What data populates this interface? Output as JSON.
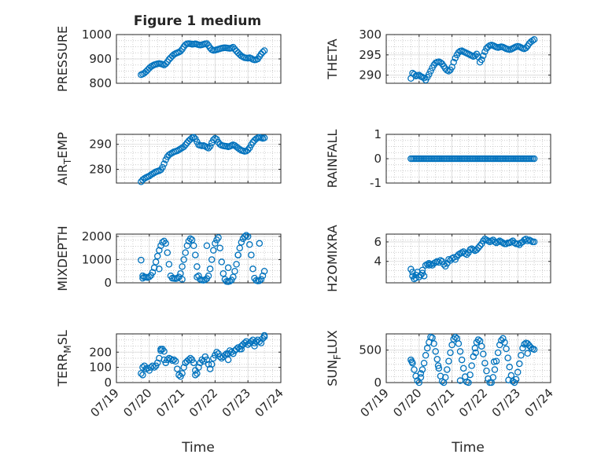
{
  "figure": {
    "title": "Figure 1 medium",
    "xlabel": "Time",
    "marker_color": "#0072BD",
    "x_ticks": [
      "07/19",
      "07/20",
      "07/21",
      "07/22",
      "07/23",
      "07/24"
    ],
    "xlim": [
      0,
      5
    ],
    "grid": "minor dotted"
  },
  "chart_data": [
    {
      "type": "scatter",
      "ylabel": "PRESSURE",
      "ylim": [
        800,
        1000
      ],
      "yticks": [
        "800",
        "900",
        "1000"
      ],
      "x": [
        0.75,
        0.8,
        0.85,
        0.9,
        0.95,
        1.0,
        1.05,
        1.1,
        1.15,
        1.2,
        1.25,
        1.3,
        1.35,
        1.4,
        1.45,
        1.5,
        1.55,
        1.6,
        1.65,
        1.7,
        1.75,
        1.8,
        1.85,
        1.9,
        1.95,
        2.0,
        2.05,
        2.1,
        2.15,
        2.2,
        2.25,
        2.3,
        2.35,
        2.4,
        2.45,
        2.5,
        2.55,
        2.6,
        2.65,
        2.7,
        2.75,
        2.8,
        2.85,
        2.9,
        2.95,
        3.0,
        3.05,
        3.1,
        3.15,
        3.2,
        3.25,
        3.3,
        3.35,
        3.4,
        3.45,
        3.5,
        3.55,
        3.6,
        3.65,
        3.7,
        3.75,
        3.8,
        3.85,
        3.9,
        3.95,
        4.0,
        4.05,
        4.1,
        4.15,
        4.2,
        4.25,
        4.3,
        4.35,
        4.4,
        4.45,
        4.5
      ],
      "y": [
        835,
        838,
        842,
        848,
        855,
        862,
        868,
        872,
        876,
        878,
        880,
        881,
        880,
        878,
        875,
        880,
        888,
        898,
        905,
        912,
        918,
        922,
        925,
        928,
        932,
        940,
        950,
        958,
        962,
        963,
        962,
        960,
        961,
        962,
        960,
        958,
        957,
        958,
        960,
        962,
        963,
        955,
        945,
        938,
        935,
        936,
        938,
        940,
        942,
        944,
        945,
        946,
        945,
        944,
        943,
        945,
        948,
        940,
        932,
        925,
        918,
        912,
        908,
        905,
        904,
        903,
        905,
        902,
        898,
        896,
        897,
        900,
        910,
        920,
        928,
        934
      ]
    },
    {
      "type": "scatter",
      "ylabel": "THETA",
      "ylim": [
        288,
        300
      ],
      "yticks": [
        "290",
        "295",
        "300"
      ],
      "x": [
        0.75,
        0.8,
        0.85,
        0.9,
        0.95,
        1.0,
        1.05,
        1.1,
        1.15,
        1.2,
        1.25,
        1.3,
        1.35,
        1.4,
        1.45,
        1.5,
        1.55,
        1.6,
        1.65,
        1.7,
        1.75,
        1.8,
        1.85,
        1.9,
        1.95,
        2.0,
        2.05,
        2.1,
        2.15,
        2.2,
        2.25,
        2.3,
        2.35,
        2.4,
        2.45,
        2.5,
        2.55,
        2.6,
        2.65,
        2.7,
        2.75,
        2.8,
        2.85,
        2.9,
        2.95,
        3.0,
        3.05,
        3.1,
        3.15,
        3.2,
        3.25,
        3.3,
        3.35,
        3.4,
        3.45,
        3.5,
        3.55,
        3.6,
        3.65,
        3.7,
        3.75,
        3.8,
        3.85,
        3.9,
        3.95,
        4.0,
        4.05,
        4.1,
        4.15,
        4.2,
        4.25,
        4.3,
        4.35,
        4.4,
        4.45,
        4.5
      ],
      "y": [
        289.2,
        290.5,
        290.2,
        289.8,
        289.9,
        290.0,
        289.7,
        289.5,
        289.3,
        288.8,
        289.5,
        290.2,
        291.0,
        291.8,
        292.5,
        293.0,
        293.2,
        293.3,
        293.1,
        292.8,
        292.2,
        291.6,
        291.2,
        291.0,
        291.3,
        292.0,
        293.2,
        294.2,
        295.0,
        295.6,
        295.9,
        296.0,
        295.8,
        295.6,
        295.4,
        295.2,
        295.0,
        294.8,
        294.6,
        294.8,
        295.2,
        294.5,
        293.2,
        293.8,
        294.8,
        295.8,
        296.6,
        297.0,
        297.3,
        297.4,
        297.3,
        297.1,
        296.9,
        296.8,
        296.9,
        297.0,
        296.9,
        296.7,
        296.5,
        296.4,
        296.3,
        296.4,
        296.6,
        296.8,
        297.0,
        297.1,
        297.0,
        296.8,
        296.6,
        296.5,
        296.7,
        297.2,
        297.8,
        298.2,
        298.5,
        298.8
      ]
    },
    {
      "type": "scatter",
      "ylabel": "AIR_TEMP",
      "ylim": [
        274.5,
        294
      ],
      "yticks": [
        "280",
        "290"
      ],
      "x": [
        0.75,
        0.8,
        0.85,
        0.9,
        0.95,
        1.0,
        1.05,
        1.1,
        1.15,
        1.2,
        1.25,
        1.3,
        1.35,
        1.4,
        1.45,
        1.5,
        1.55,
        1.6,
        1.65,
        1.7,
        1.75,
        1.8,
        1.85,
        1.9,
        1.95,
        2.0,
        2.05,
        2.1,
        2.15,
        2.2,
        2.25,
        2.3,
        2.35,
        2.4,
        2.45,
        2.5,
        2.55,
        2.6,
        2.65,
        2.7,
        2.75,
        2.8,
        2.85,
        2.9,
        2.95,
        3.0,
        3.05,
        3.1,
        3.15,
        3.2,
        3.25,
        3.3,
        3.35,
        3.4,
        3.45,
        3.5,
        3.55,
        3.6,
        3.65,
        3.7,
        3.75,
        3.8,
        3.85,
        3.9,
        3.95,
        4.0,
        4.05,
        4.1,
        4.15,
        4.2,
        4.25,
        4.3,
        4.35,
        4.4,
        4.45,
        4.5
      ],
      "y": [
        275.0,
        275.8,
        276.3,
        276.7,
        277.0,
        277.3,
        277.8,
        278.2,
        278.6,
        279.0,
        279.2,
        279.4,
        279.8,
        280.8,
        282.2,
        283.8,
        285.0,
        285.8,
        286.2,
        286.6,
        287.0,
        287.2,
        287.4,
        287.8,
        288.2,
        288.6,
        289.0,
        289.8,
        290.6,
        291.4,
        292.0,
        292.6,
        292.8,
        292.2,
        291.0,
        289.8,
        289.6,
        289.4,
        289.5,
        289.2,
        288.8,
        288.5,
        289.2,
        290.6,
        291.8,
        292.4,
        292.0,
        290.8,
        290.0,
        289.6,
        289.4,
        289.3,
        289.2,
        289.0,
        289.2,
        289.5,
        289.8,
        289.5,
        289.0,
        288.5,
        288.0,
        287.6,
        287.4,
        287.2,
        287.3,
        287.8,
        288.6,
        289.8,
        290.8,
        291.6,
        292.2,
        292.6,
        292.8,
        292.6,
        292.4,
        292.6
      ]
    },
    {
      "type": "scatter",
      "ylabel": "RAINFALL",
      "ylim": [
        -1,
        1
      ],
      "yticks": [
        "-1",
        "0",
        "1"
      ],
      "x": [
        0.75,
        0.8,
        0.85,
        0.9,
        0.95,
        1.0,
        1.05,
        1.1,
        1.15,
        1.2,
        1.25,
        1.3,
        1.35,
        1.4,
        1.45,
        1.5,
        1.55,
        1.6,
        1.65,
        1.7,
        1.75,
        1.8,
        1.85,
        1.9,
        1.95,
        2.0,
        2.05,
        2.1,
        2.15,
        2.2,
        2.25,
        2.3,
        2.35,
        2.4,
        2.45,
        2.5,
        2.55,
        2.6,
        2.65,
        2.7,
        2.75,
        2.8,
        2.85,
        2.9,
        2.95,
        3.0,
        3.05,
        3.1,
        3.15,
        3.2,
        3.25,
        3.3,
        3.35,
        3.4,
        3.45,
        3.5,
        3.55,
        3.6,
        3.65,
        3.7,
        3.75,
        3.8,
        3.85,
        3.9,
        3.95,
        4.0,
        4.05,
        4.1,
        4.15,
        4.2,
        4.25,
        4.3,
        4.35,
        4.4,
        4.45,
        4.5
      ],
      "y": [
        0,
        0,
        0,
        0,
        0,
        0,
        0,
        0,
        0,
        0,
        0,
        0,
        0,
        0,
        0,
        0,
        0,
        0,
        0,
        0,
        0,
        0,
        0,
        0,
        0,
        0,
        0,
        0,
        0,
        0,
        0,
        0,
        0,
        0,
        0,
        0,
        0,
        0,
        0,
        0,
        0,
        0,
        0,
        0,
        0,
        0,
        0,
        0,
        0,
        0,
        0,
        0,
        0,
        0,
        0,
        0,
        0,
        0,
        0,
        0,
        0,
        0,
        0,
        0,
        0,
        0,
        0,
        0,
        0,
        0,
        0,
        0,
        0,
        0,
        0,
        0
      ]
    },
    {
      "type": "scatter",
      "ylabel": "MIXDEPTH",
      "ylim": [
        0,
        2100
      ],
      "yticks": [
        "0",
        "1000",
        "2000"
      ],
      "x": [
        0.75,
        0.8,
        0.85,
        0.9,
        0.95,
        1.0,
        1.05,
        1.1,
        1.15,
        1.2,
        1.25,
        1.3,
        1.35,
        1.4,
        1.45,
        1.5,
        1.55,
        1.6,
        1.65,
        1.7,
        1.75,
        1.8,
        1.85,
        1.9,
        1.95,
        2.0,
        2.05,
        2.1,
        2.15,
        2.2,
        2.25,
        2.3,
        2.35,
        2.4,
        2.45,
        2.5,
        2.55,
        2.6,
        2.65,
        2.7,
        2.75,
        2.8,
        2.85,
        2.9,
        2.95,
        3.0,
        3.05,
        3.1,
        3.15,
        3.2,
        3.25,
        3.3,
        3.35,
        3.4,
        3.45,
        3.5,
        3.55,
        3.6,
        3.65,
        3.7,
        3.75,
        3.8,
        3.85,
        3.9,
        3.95,
        4.0,
        4.05,
        4.1,
        4.15,
        4.2,
        4.25,
        4.3,
        4.35,
        4.4,
        4.45,
        4.5,
        0.8,
        1.3,
        2.0,
        2.45,
        2.75,
        3.4,
        3.7,
        4.35
      ],
      "y": [
        980,
        300,
        250,
        240,
        230,
        260,
        320,
        450,
        650,
        900,
        1150,
        1400,
        1600,
        1750,
        1800,
        1700,
        1300,
        800,
        300,
        200,
        190,
        180,
        200,
        250,
        400,
        700,
        1000,
        1300,
        1600,
        1800,
        1900,
        1850,
        1600,
        1200,
        700,
        300,
        150,
        120,
        110,
        130,
        180,
        300,
        600,
        1000,
        1400,
        1700,
        1850,
        1950,
        1500,
        900,
        400,
        150,
        60,
        50,
        70,
        120,
        250,
        500,
        800,
        1200,
        1500,
        1750,
        1900,
        2000,
        2050,
        2000,
        1650,
        1200,
        600,
        200,
        100,
        80,
        90,
        150,
        300,
        500,
        200,
        600,
        150,
        250,
        1600,
        650,
        1200,
        1700
      ]
    },
    {
      "type": "scatter",
      "ylabel": "H2OMIXRA",
      "ylim": [
        1.8,
        6.8
      ],
      "yticks": [
        "4",
        "6"
      ],
      "x": [
        0.75,
        0.8,
        0.85,
        0.9,
        0.95,
        1.0,
        1.05,
        1.1,
        1.15,
        1.2,
        1.25,
        1.3,
        1.35,
        1.4,
        1.45,
        1.5,
        1.55,
        1.6,
        1.65,
        1.7,
        1.75,
        1.8,
        1.85,
        1.9,
        1.95,
        2.0,
        2.05,
        2.1,
        2.15,
        2.2,
        2.25,
        2.3,
        2.35,
        2.4,
        2.45,
        2.5,
        2.55,
        2.6,
        2.65,
        2.7,
        2.75,
        2.8,
        2.85,
        2.9,
        2.95,
        3.0,
        3.05,
        3.1,
        3.15,
        3.2,
        3.25,
        3.3,
        3.35,
        3.4,
        3.45,
        3.5,
        3.55,
        3.6,
        3.65,
        3.7,
        3.75,
        3.8,
        3.85,
        3.9,
        3.95,
        4.0,
        4.05,
        4.1,
        4.15,
        4.2,
        4.25,
        4.3,
        4.35,
        4.4,
        4.45,
        4.5,
        0.8,
        0.9,
        1.1,
        1.3
      ],
      "y": [
        3.2,
        2.5,
        2.2,
        2.6,
        2.9,
        2.4,
        2.6,
        2.8,
        2.5,
        3.6,
        3.7,
        3.8,
        3.7,
        3.6,
        3.8,
        3.9,
        4.0,
        3.9,
        4.1,
        4.0,
        3.7,
        3.5,
        3.8,
        4.2,
        4.1,
        4.3,
        4.4,
        4.2,
        4.5,
        4.7,
        4.8,
        4.9,
        5.0,
        4.8,
        4.7,
        4.9,
        5.2,
        5.3,
        5.2,
        5.1,
        5.2,
        5.4,
        5.6,
        5.8,
        6.1,
        6.3,
        6.2,
        6.1,
        6.0,
        6.1,
        6.2,
        6.0,
        5.9,
        6.0,
        6.1,
        6.0,
        5.9,
        5.8,
        5.8,
        5.9,
        5.9,
        6.0,
        6.1,
        5.9,
        5.8,
        5.8,
        5.7,
        5.9,
        6.0,
        6.2,
        6.3,
        6.1,
        6.2,
        6.1,
        6.0,
        6.0,
        2.9,
        2.3,
        3.1,
        3.6
      ]
    },
    {
      "type": "scatter",
      "ylabel": "TERR_MSL",
      "ylim": [
        0,
        320
      ],
      "yticks": [
        "0",
        "100",
        "200"
      ],
      "x": [
        0.75,
        0.8,
        0.85,
        0.9,
        0.95,
        1.0,
        1.05,
        1.1,
        1.15,
        1.2,
        1.25,
        1.3,
        1.35,
        1.4,
        1.45,
        1.5,
        1.55,
        1.6,
        1.65,
        1.7,
        1.75,
        1.8,
        1.85,
        1.9,
        1.95,
        2.0,
        2.05,
        2.1,
        2.15,
        2.2,
        2.25,
        2.3,
        2.35,
        2.4,
        2.45,
        2.5,
        2.55,
        2.6,
        2.65,
        2.7,
        2.75,
        2.8,
        2.85,
        2.9,
        2.95,
        3.0,
        3.05,
        3.1,
        3.15,
        3.2,
        3.25,
        3.3,
        3.35,
        3.4,
        3.45,
        3.5,
        3.55,
        3.6,
        3.65,
        3.7,
        3.75,
        3.8,
        3.85,
        3.9,
        3.95,
        4.0,
        4.05,
        4.1,
        4.15,
        4.2,
        4.25,
        4.3,
        4.35,
        4.4,
        4.45,
        4.5,
        0.8,
        1.35,
        1.45,
        2.4,
        3.4,
        3.8,
        4.2,
        4.5
      ],
      "y": [
        60,
        100,
        110,
        90,
        95,
        80,
        100,
        110,
        100,
        110,
        130,
        160,
        210,
        220,
        150,
        130,
        150,
        160,
        155,
        145,
        150,
        140,
        90,
        50,
        40,
        60,
        100,
        130,
        140,
        150,
        160,
        150,
        130,
        80,
        60,
        100,
        130,
        150,
        140,
        170,
        150,
        120,
        90,
        120,
        160,
        180,
        200,
        190,
        170,
        160,
        170,
        180,
        190,
        190,
        210,
        200,
        190,
        210,
        220,
        230,
        220,
        240,
        250,
        260,
        270,
        250,
        260,
        270,
        280,
        260,
        270,
        280,
        270,
        260,
        290,
        300,
        50,
        220,
        205,
        50,
        150,
        220,
        240,
        310
      ]
    },
    {
      "type": "scatter",
      "ylabel": "SUN_FLUX",
      "ylim": [
        0,
        750
      ],
      "yticks": [
        "0",
        "500"
      ],
      "x": [
        0.75,
        0.8,
        0.85,
        0.9,
        0.95,
        1.0,
        1.05,
        1.1,
        1.15,
        1.2,
        1.25,
        1.3,
        1.35,
        1.4,
        1.45,
        1.5,
        1.55,
        1.6,
        1.65,
        1.7,
        1.75,
        1.8,
        1.85,
        1.9,
        1.95,
        2.0,
        2.05,
        2.1,
        2.15,
        2.2,
        2.25,
        2.3,
        2.35,
        2.4,
        2.45,
        2.5,
        2.55,
        2.6,
        2.65,
        2.7,
        2.75,
        2.8,
        2.85,
        2.9,
        2.95,
        3.0,
        3.05,
        3.1,
        3.15,
        3.2,
        3.25,
        3.3,
        3.35,
        3.4,
        3.45,
        3.5,
        3.55,
        3.6,
        3.65,
        3.7,
        3.75,
        3.8,
        3.85,
        3.9,
        3.95,
        4.0,
        4.05,
        4.1,
        4.15,
        4.2,
        4.25,
        4.3,
        4.35,
        4.4,
        4.45,
        4.5,
        0.78,
        1.05,
        1.58,
        2.25,
        2.72,
        3.28,
        3.72,
        4.3
      ],
      "y": [
        350,
        300,
        200,
        100,
        30,
        0,
        80,
        200,
        300,
        420,
        530,
        620,
        700,
        690,
        600,
        480,
        360,
        220,
        100,
        20,
        0,
        80,
        200,
        330,
        460,
        580,
        670,
        700,
        680,
        600,
        480,
        350,
        220,
        90,
        10,
        0,
        120,
        260,
        400,
        530,
        620,
        660,
        640,
        560,
        440,
        300,
        180,
        60,
        0,
        0,
        80,
        200,
        330,
        460,
        580,
        650,
        680,
        620,
        520,
        380,
        240,
        110,
        20,
        0,
        50,
        160,
        290,
        420,
        530,
        590,
        610,
        600,
        570,
        540,
        520,
        510,
        320,
        140,
        260,
        30,
        460,
        320,
        40,
        450
      ]
    }
  ]
}
